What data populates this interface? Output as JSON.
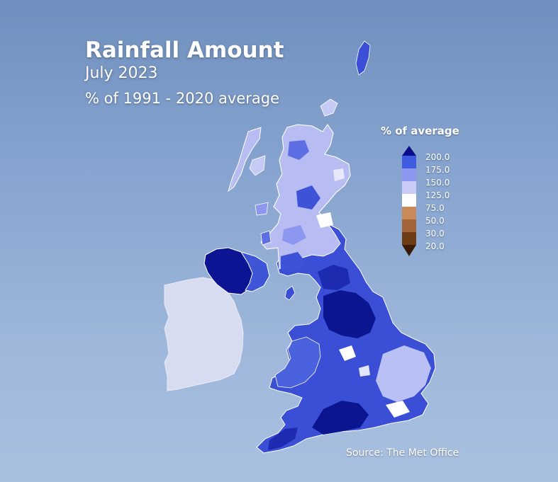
{
  "title": "Rainfall Amount",
  "subtitle": "July 2023",
  "caption": "% of 1991 - 2020 average",
  "legend": {
    "title": "% of average",
    "bins": [
      {
        "label": "200.0",
        "color": "#0b0f8c"
      },
      {
        "label": "175.0",
        "color": "#3f5be0"
      },
      {
        "label": "150.0",
        "color": "#8d97f0"
      },
      {
        "label": "125.0",
        "color": "#c8ccf6"
      },
      {
        "label": "75.0",
        "color": "#ffffff"
      },
      {
        "label": "50.0",
        "color": "#c98a5a"
      },
      {
        "label": "30.0",
        "color": "#a4653a"
      },
      {
        "label": "20.0",
        "color": "#6e3b17"
      }
    ],
    "top_arrow_color": "#0b0f8c",
    "bottom_arrow_color": "#3b1b07"
  },
  "source": "Source: The Met Office",
  "colors": {
    "ireland": "#d8dcf0",
    "northern_ireland": "#0d1494",
    "scotland_base": "#b7bdf3",
    "england_base": "#3a4fd6",
    "very_wet": "#0b1590",
    "near_average": "#ffffff"
  }
}
